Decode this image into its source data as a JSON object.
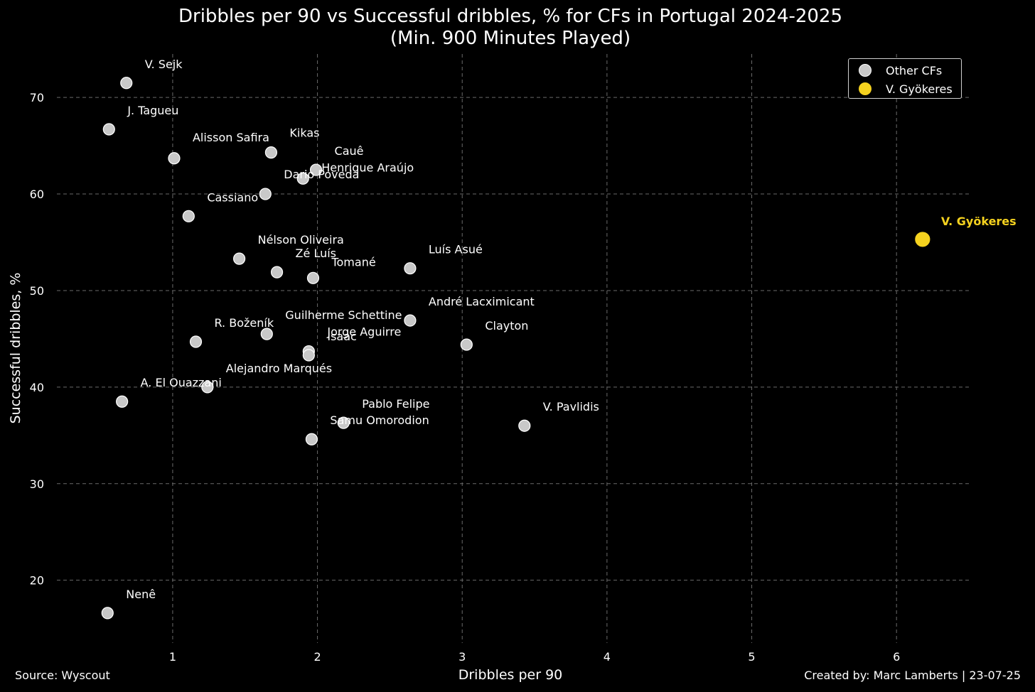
{
  "chart_data": {
    "type": "scatter",
    "title": [
      "Dribbles per 90 vs Successful dribbles, % for CFs in Portugal 2024-2025",
      "(Min. 900 Minutes Played)"
    ],
    "xlabel": "Dribbles per 90",
    "ylabel": "Successful dribbles, %",
    "xlim": [
      0.2,
      6.5
    ],
    "ylim": [
      13.5,
      74.5
    ],
    "xticks": [
      1,
      2,
      3,
      4,
      5,
      6
    ],
    "yticks": [
      20,
      30,
      40,
      50,
      60,
      70
    ],
    "grid": true,
    "legend_position": "top-right",
    "colors": {
      "background": "#000000",
      "other": "#c8c8c8",
      "highlight": "#f5d21f"
    },
    "series": [
      {
        "name": "Other CFs",
        "points": [
          {
            "label": "V. Sejk",
            "x": 0.68,
            "y": 71.5
          },
          {
            "label": "J. Tagueu",
            "x": 0.56,
            "y": 66.7
          },
          {
            "label": "Alisson Safira",
            "x": 1.01,
            "y": 63.7
          },
          {
            "label": "Kikas",
            "x": 1.68,
            "y": 64.3
          },
          {
            "label": "Cauê",
            "x": 1.99,
            "y": 62.5
          },
          {
            "label": "Henrique Araújo",
            "x": 1.9,
            "y": 61.6
          },
          {
            "label": "Dario Poveda",
            "x": 1.64,
            "y": 60.0
          },
          {
            "label": "Cassiano",
            "x": 1.11,
            "y": 57.7
          },
          {
            "label": "Nélson Oliveira",
            "x": 1.46,
            "y": 53.3
          },
          {
            "label": "Zé Luís",
            "x": 1.72,
            "y": 51.9
          },
          {
            "label": "Tomané",
            "x": 1.97,
            "y": 51.3
          },
          {
            "label": "Luís Asué",
            "x": 2.64,
            "y": 52.3
          },
          {
            "label": "André Lacximicant",
            "x": 2.64,
            "y": 46.9
          },
          {
            "label": "Guilherme Schettine",
            "x": 1.65,
            "y": 45.5
          },
          {
            "label": "R. Boženík",
            "x": 1.16,
            "y": 44.7
          },
          {
            "label": "Jorge Aguirre",
            "x": 1.94,
            "y": 43.7
          },
          {
            "label": "Isaac",
            "x": 1.94,
            "y": 43.3
          },
          {
            "label": "Clayton",
            "x": 3.03,
            "y": 44.4
          },
          {
            "label": "Alejandro Marqués",
            "x": 1.24,
            "y": 40.0
          },
          {
            "label": "A. El Ouazzani",
            "x": 0.65,
            "y": 38.5
          },
          {
            "label": "Pablo Felipe",
            "x": 2.18,
            "y": 36.3
          },
          {
            "label": "Samu Omorodion",
            "x": 1.96,
            "y": 34.6
          },
          {
            "label": "V. Pavlidis",
            "x": 3.43,
            "y": 36.0
          },
          {
            "label": "Nenê",
            "x": 0.55,
            "y": 16.6
          }
        ]
      },
      {
        "name": "V. Gyökeres",
        "points": [
          {
            "label": "V. Gyökeres",
            "x": 6.18,
            "y": 55.3
          }
        ]
      }
    ]
  },
  "footer": {
    "source": "Source: Wyscout",
    "credit": "Created by: Marc Lamberts | 23-07-25"
  }
}
